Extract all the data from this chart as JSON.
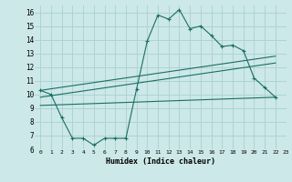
{
  "xlabel": "Humidex (Indice chaleur)",
  "background_color": "#cce8e8",
  "grid_color": "#aad0d0",
  "line_color": "#1a6e64",
  "xlim": [
    -0.5,
    23
  ],
  "ylim": [
    6,
    16.5
  ],
  "xticks": [
    0,
    1,
    2,
    3,
    4,
    5,
    6,
    7,
    8,
    9,
    10,
    11,
    12,
    13,
    14,
    15,
    16,
    17,
    18,
    19,
    20,
    21,
    22,
    23
  ],
  "yticks": [
    6,
    7,
    8,
    9,
    10,
    11,
    12,
    13,
    14,
    15,
    16
  ],
  "line1_x": [
    0,
    1,
    2,
    3,
    4,
    5,
    6,
    7,
    8,
    9,
    10,
    11,
    12,
    13,
    14,
    15,
    16,
    17,
    18,
    19,
    20,
    21,
    22
  ],
  "line1_y": [
    10.3,
    10.0,
    8.3,
    6.8,
    6.8,
    6.3,
    6.8,
    6.8,
    6.8,
    10.4,
    13.9,
    15.8,
    15.5,
    16.2,
    14.8,
    15.0,
    14.3,
    13.5,
    13.6,
    13.2,
    11.2,
    10.5,
    9.8
  ],
  "line2_x": [
    0,
    22
  ],
  "line2_y": [
    10.3,
    12.8
  ],
  "line3_x": [
    0,
    22
  ],
  "line3_y": [
    9.2,
    9.8
  ],
  "line4_x": [
    0,
    22
  ],
  "line4_y": [
    9.8,
    12.3
  ]
}
